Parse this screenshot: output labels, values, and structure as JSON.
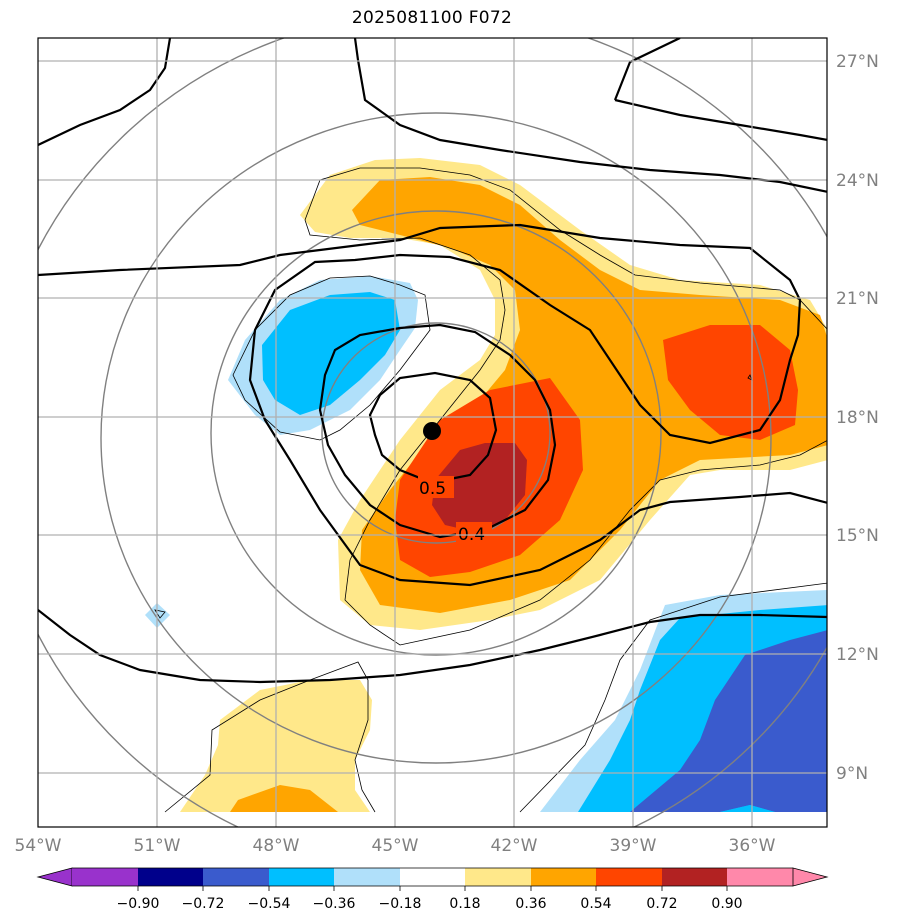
{
  "title": "2025081100 F072",
  "map": {
    "lat_labels": [
      "27°N",
      "24°N",
      "21°N",
      "18°N",
      "15°N",
      "12°N",
      "9°N"
    ],
    "lon_labels": [
      "54°W",
      "51°W",
      "48°W",
      "45°W",
      "42°W",
      "39°W",
      "36°W"
    ],
    "lat_range": [
      7.8,
      27.6
    ],
    "lon_range": [
      -54,
      -34
    ],
    "storm_center": {
      "lon": -44.0,
      "lat": 17.6
    },
    "contour_labels": [
      "0.5",
      "0.4"
    ],
    "grid": true
  },
  "colorbar": {
    "ticks": [
      "−0.90",
      "−0.72",
      "−0.54",
      "−0.36",
      "−0.18",
      "0.18",
      "0.36",
      "0.54",
      "0.72",
      "0.90"
    ],
    "colors": [
      "#9932cc",
      "#00008b",
      "#3a5bcd",
      "#00bfff",
      "#b0e0fa",
      "#ffffff",
      "#ffe88a",
      "#ffa500",
      "#ff4500",
      "#b22222",
      "#ff88aa"
    ]
  }
}
